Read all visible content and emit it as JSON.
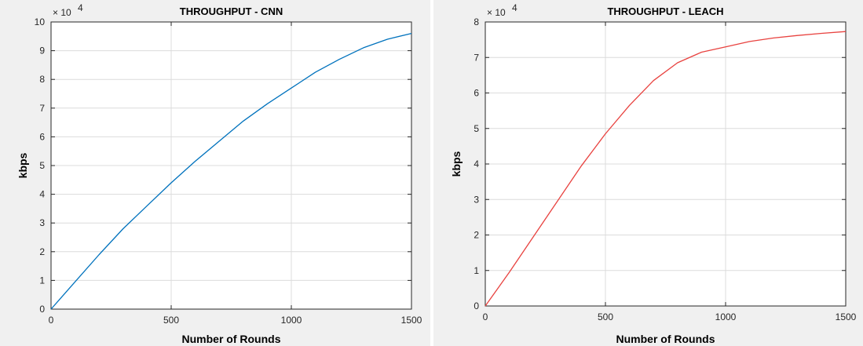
{
  "chart_data": [
    {
      "type": "line",
      "title": "THROUGHPUT - CNN",
      "xlabel": "Number of Rounds",
      "ylabel": "kbps",
      "y_exponent_label": "× 10",
      "y_exponent": "4",
      "xlim": [
        0,
        1500
      ],
      "ylim": [
        0,
        10
      ],
      "xticks": [
        0,
        500,
        1000,
        1500
      ],
      "yticks": [
        0,
        1,
        2,
        3,
        4,
        5,
        6,
        7,
        8,
        9,
        10
      ],
      "grid": true,
      "series": [
        {
          "color": "#0072bd",
          "x": [
            0,
            100,
            200,
            300,
            400,
            500,
            600,
            700,
            800,
            900,
            1000,
            1100,
            1200,
            1300,
            1400,
            1500
          ],
          "y": [
            0,
            0.95,
            1.9,
            2.8,
            3.6,
            4.4,
            5.15,
            5.85,
            6.55,
            7.15,
            7.7,
            8.25,
            8.7,
            9.1,
            9.4,
            9.6
          ]
        }
      ]
    },
    {
      "type": "line",
      "title": "THROUGHPUT - LEACH",
      "xlabel": "Number of Rounds",
      "ylabel": "kbps",
      "y_exponent_label": "× 10",
      "y_exponent": "4",
      "xlim": [
        0,
        1500
      ],
      "ylim": [
        0,
        8
      ],
      "xticks": [
        0,
        500,
        1000,
        1500
      ],
      "yticks": [
        0,
        1,
        2,
        3,
        4,
        5,
        6,
        7,
        8
      ],
      "grid": true,
      "series": [
        {
          "color": "#e8423f",
          "x": [
            0,
            100,
            200,
            300,
            400,
            500,
            600,
            700,
            800,
            900,
            1000,
            1100,
            1200,
            1300,
            1400,
            1500
          ],
          "y": [
            0,
            0.95,
            1.95,
            2.95,
            3.95,
            4.85,
            5.65,
            6.35,
            6.85,
            7.15,
            7.3,
            7.45,
            7.55,
            7.62,
            7.68,
            7.73
          ]
        }
      ]
    }
  ]
}
